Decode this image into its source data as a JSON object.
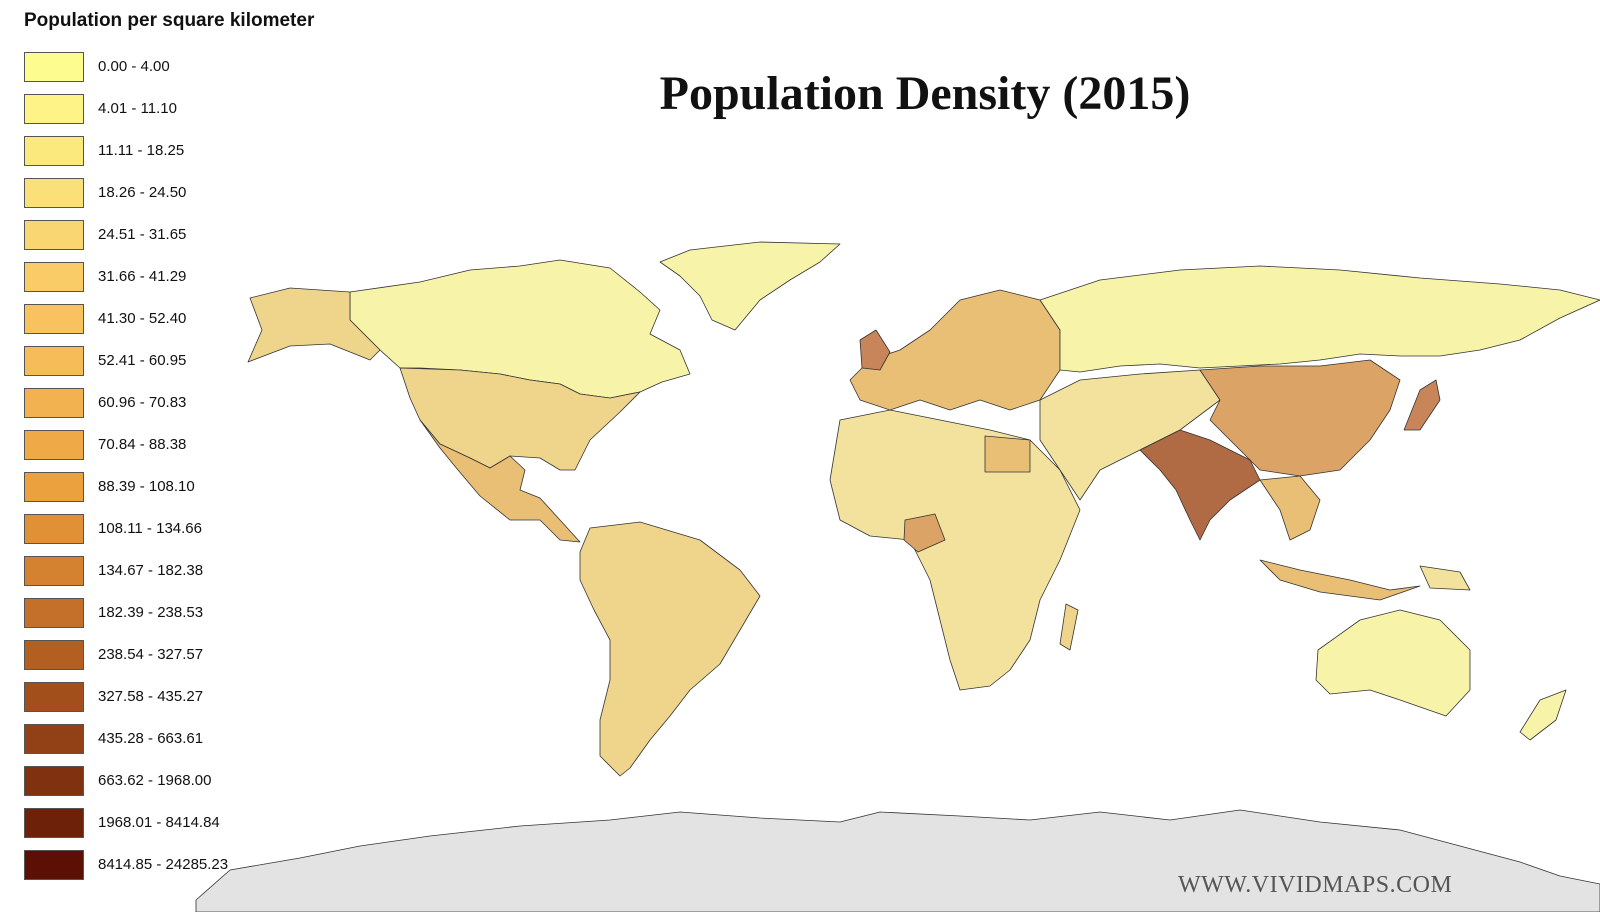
{
  "legend": {
    "title": "Population per square kilometer",
    "classes": [
      {
        "label": "0.00 - 4.00",
        "color": "#fdfd8f"
      },
      {
        "label": "4.01 - 11.10",
        "color": "#fdf386"
      },
      {
        "label": "11.11 - 18.25",
        "color": "#fce97e"
      },
      {
        "label": "18.26 - 24.50",
        "color": "#fbe07a"
      },
      {
        "label": "24.51 - 31.65",
        "color": "#fad672"
      },
      {
        "label": "31.66 - 41.29",
        "color": "#f9cc68"
      },
      {
        "label": "41.30 - 52.40",
        "color": "#f8c35f"
      },
      {
        "label": "52.41 - 60.95",
        "color": "#f6bc57"
      },
      {
        "label": "60.96 - 70.83",
        "color": "#f3b250"
      },
      {
        "label": "70.84 - 88.38",
        "color": "#efa946"
      },
      {
        "label": "88.39 - 108.10",
        "color": "#eca13f"
      },
      {
        "label": "108.11 - 134.66",
        "color": "#e09138"
      },
      {
        "label": "134.67 - 182.38",
        "color": "#d48230"
      },
      {
        "label": "182.39 - 238.53",
        "color": "#c4702a"
      },
      {
        "label": "238.54 - 327.57",
        "color": "#b35f22"
      },
      {
        "label": "327.58 - 435.27",
        "color": "#a34f1c"
      },
      {
        "label": "435.28 - 663.61",
        "color": "#924016"
      },
      {
        "label": "663.62 - 1968.00",
        "color": "#80310f"
      },
      {
        "label": "1968.01 - 8414.84",
        "color": "#6e2109"
      },
      {
        "label": "8414.85 - 24285.23",
        "color": "#5c0f04"
      }
    ]
  },
  "map": {
    "title": "Population Density (2015)",
    "watermark": "WWW.VIVIDMAPS.COM",
    "colors": {
      "ocean": "#ffffff",
      "no_data": "#e3e3e3",
      "border": "#333333",
      "very_low": "#f7f3a8",
      "low": "#f3e29e",
      "mid_low": "#efd48c",
      "mid": "#e9bf76",
      "mid_high": "#dca366",
      "high": "#c8855a",
      "very_high": "#b06a44"
    }
  }
}
